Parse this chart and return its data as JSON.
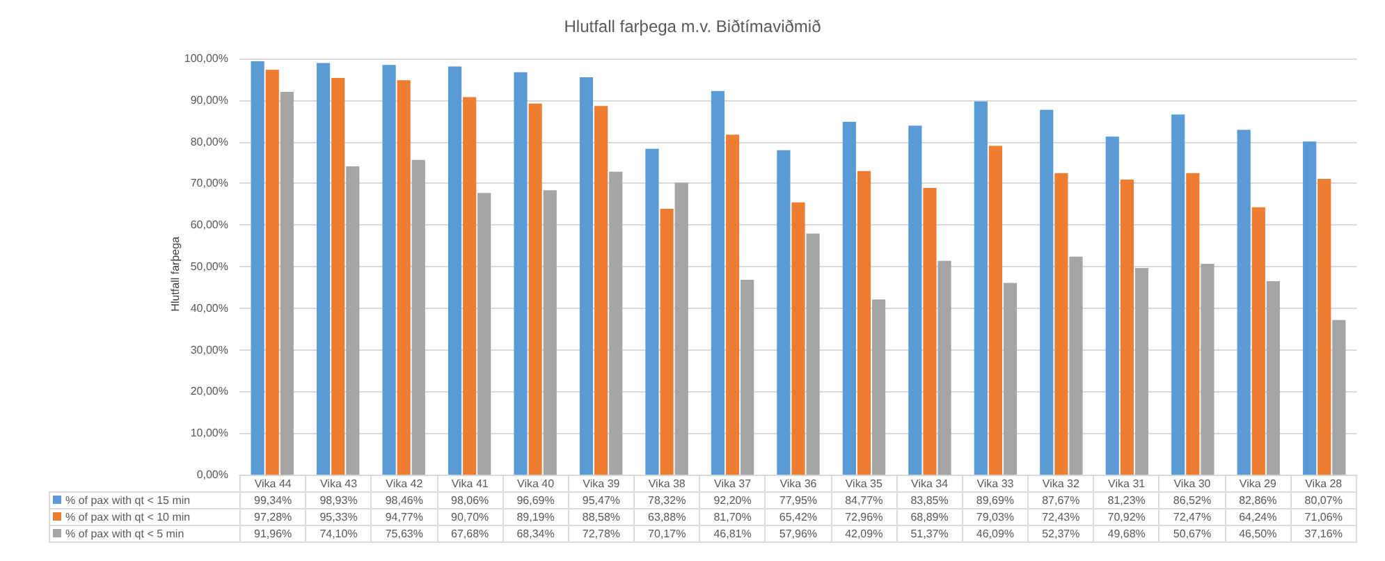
{
  "chart_data": {
    "type": "bar",
    "title": "Hlutfall farþega m.v. Biðtímaviðmið",
    "ylabel": "Hlutfall farþega",
    "categories": [
      "Vika 44",
      "Vika 43",
      "Vika 42",
      "Vika 41",
      "Vika 40",
      "Vika 39",
      "Vika 38",
      "Vika 37",
      "Vika 36",
      "Vika 35",
      "Vika 34",
      "Vika 33",
      "Vika 32",
      "Vika 31",
      "Vika 30",
      "Vika 29",
      "Vika 28"
    ],
    "series": [
      {
        "name": "% of pax with qt < 15 min",
        "color": "#5b9bd5",
        "values": [
          99.34,
          98.93,
          98.46,
          98.06,
          96.69,
          95.47,
          78.32,
          92.2,
          77.95,
          84.77,
          83.85,
          89.69,
          87.67,
          81.23,
          86.52,
          82.86,
          80.07
        ],
        "value_labels": [
          "99,34%",
          "98,93%",
          "98,46%",
          "98,06%",
          "96,69%",
          "95,47%",
          "78,32%",
          "92,20%",
          "77,95%",
          "84,77%",
          "83,85%",
          "89,69%",
          "87,67%",
          "81,23%",
          "86,52%",
          "82,86%",
          "80,07%"
        ]
      },
      {
        "name": "% of pax with qt < 10 min",
        "color": "#ed7d31",
        "values": [
          97.28,
          95.33,
          94.77,
          90.7,
          89.19,
          88.58,
          63.88,
          81.7,
          65.42,
          72.96,
          68.89,
          79.03,
          72.43,
          70.92,
          72.47,
          64.24,
          71.06
        ],
        "value_labels": [
          "97,28%",
          "95,33%",
          "94,77%",
          "90,70%",
          "89,19%",
          "88,58%",
          "63,88%",
          "81,70%",
          "65,42%",
          "72,96%",
          "68,89%",
          "79,03%",
          "72,43%",
          "70,92%",
          "72,47%",
          "64,24%",
          "71,06%"
        ]
      },
      {
        "name": "% of pax with qt < 5 min",
        "color": "#a5a5a5",
        "values": [
          91.96,
          74.1,
          75.63,
          67.68,
          68.34,
          72.78,
          70.17,
          46.81,
          57.96,
          42.09,
          51.37,
          46.09,
          52.37,
          49.68,
          50.67,
          46.5,
          37.16
        ],
        "value_labels": [
          "91,96%",
          "74,10%",
          "75,63%",
          "67,68%",
          "68,34%",
          "72,78%",
          "70,17%",
          "46,81%",
          "57,96%",
          "42,09%",
          "51,37%",
          "46,09%",
          "52,37%",
          "49,68%",
          "50,67%",
          "46,50%",
          "37,16%"
        ]
      }
    ],
    "ylim": [
      0,
      100
    ],
    "yticks": [
      {
        "value": 0,
        "label": "0,00%"
      },
      {
        "value": 10,
        "label": "10,00%"
      },
      {
        "value": 20,
        "label": "20,00%"
      },
      {
        "value": 30,
        "label": "30,00%"
      },
      {
        "value": 40,
        "label": "40,00%"
      },
      {
        "value": 50,
        "label": "50,00%"
      },
      {
        "value": 60,
        "label": "60,00%"
      },
      {
        "value": 70,
        "label": "70,00%"
      },
      {
        "value": 80,
        "label": "80,00%"
      },
      {
        "value": 90,
        "label": "90,00%"
      },
      {
        "value": 100,
        "label": "100,00%"
      }
    ],
    "grid": "y",
    "legend": "bottom"
  }
}
